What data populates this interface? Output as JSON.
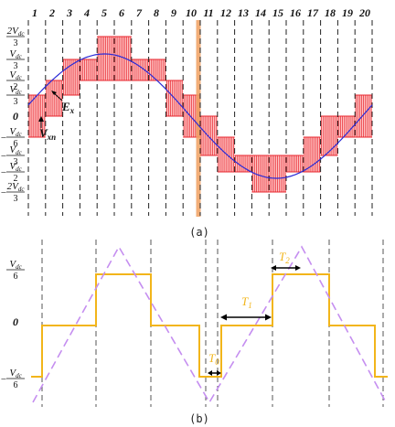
{
  "panel_a": {
    "caption": "(a)",
    "sector_numbers": [
      "1",
      "2",
      "3",
      "4",
      "5",
      "6",
      "7",
      "8",
      "9",
      "10",
      "11",
      "12",
      "13",
      "14",
      "15",
      "16",
      "17",
      "18",
      "19",
      "20"
    ],
    "y_labels": [
      {
        "num": "2V",
        "sub": "dc",
        "den": "3"
      },
      {
        "num": "V",
        "sub": "dc",
        "den": "3"
      },
      {
        "num": "V",
        "sub": "dc",
        "den": "2"
      },
      {
        "num": "V",
        "sub": "dc",
        "den": "3"
      },
      {
        "plain": "0"
      },
      {
        "num": "V",
        "sub": "dc",
        "den": "6",
        "minus": "−"
      },
      {
        "num": "V",
        "sub": "dc",
        "den": "3",
        "minus": "−"
      },
      {
        "num": "V",
        "sub": "dc",
        "den": "2",
        "minus": "−"
      },
      {
        "num": "2V",
        "sub": "dc",
        "den": "3",
        "minus": "−"
      }
    ],
    "annotations": {
      "ex": {
        "main": "E",
        "sub": "x"
      },
      "vxn": {
        "main": "V",
        "sub": "xn"
      }
    },
    "colors": {
      "sine": "#2b2bd6",
      "pwm": "#e8262e",
      "band": "#ffb3b3",
      "marker": "#f0a060"
    }
  },
  "panel_b": {
    "caption": "(b)",
    "y_labels": [
      {
        "num": "V",
        "sub": "dc",
        "den": "6"
      },
      {
        "plain": "0"
      },
      {
        "num": "V",
        "sub": "dc",
        "den": "6",
        "minus": "−"
      }
    ],
    "annotations": {
      "t2": {
        "main": "T",
        "sub": "2"
      },
      "t1": {
        "main": "T",
        "sub": "1"
      },
      "t0": {
        "main": "T",
        "sub": "0"
      }
    },
    "colors": {
      "step": "#f2b51a",
      "carrier": "#c58ef0"
    }
  }
}
